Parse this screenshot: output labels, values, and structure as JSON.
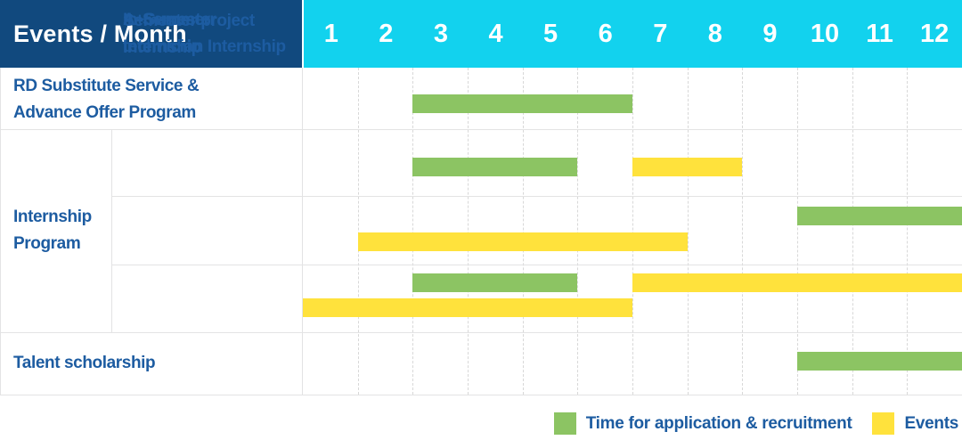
{
  "header": {
    "title": "Events / Month",
    "months": [
      "1",
      "2",
      "3",
      "4",
      "5",
      "6",
      "7",
      "8",
      "9",
      "10",
      "11",
      "12"
    ]
  },
  "colors": {
    "navy": "#11497E",
    "cyan": "#12D2EE",
    "green": "#8CC463",
    "yellow": "#FFE23C",
    "label_blue": "#1D5CA1",
    "grid_line": "#E3E3E4"
  },
  "row_labels": {
    "rd": {
      "line1": "RD Substitute Service &",
      "line2": "Advance Offer Program"
    },
    "internship_group": {
      "line1": "Internship",
      "line2": "Program"
    },
    "a_summer": {
      "line1": "A+Summer",
      "line2": "Internship"
    },
    "semester_project": {
      "line1": "Semester project",
      "line2": "Internship"
    },
    "in_semester": {
      "line1": "In-Semester",
      "line2": "technician Internship"
    },
    "talent": {
      "line1": "Talent scholarship"
    }
  },
  "legend": {
    "items": [
      {
        "label": "Time for application & recruitment",
        "color": "green"
      },
      {
        "label": "Events",
        "color": "yellow"
      }
    ]
  },
  "chart_data": {
    "type": "bar",
    "subtype": "gantt-schedule",
    "title": "Events / Month",
    "x_axis": {
      "label": "Month",
      "ticks": [
        1,
        2,
        3,
        4,
        5,
        6,
        7,
        8,
        9,
        10,
        11,
        12
      ],
      "range": [
        1,
        13
      ],
      "gridlines": "dashed-vertical"
    },
    "legend_position": "bottom-right",
    "series_legend": [
      {
        "name": "Time for application & recruitment",
        "color": "#8CC463"
      },
      {
        "name": "Events",
        "color": "#FFE23C"
      }
    ],
    "note": "start/end are month numbers on the 1-12 axis; end is exclusive (a bar from 3 to 7 covers months 3,4,5,6)",
    "rows": [
      {
        "group": "",
        "label": "RD Substitute Service & Advance Offer Program",
        "lanes": [
          [
            {
              "series": "Time for application & recruitment",
              "color": "green",
              "start": 3,
              "end": 7
            }
          ]
        ]
      },
      {
        "group": "Internship Program",
        "label": "A+Summer Internship",
        "lanes": [
          [
            {
              "series": "Time for application & recruitment",
              "color": "green",
              "start": 3,
              "end": 6
            },
            {
              "series": "Events",
              "color": "yellow",
              "start": 7,
              "end": 9
            }
          ]
        ]
      },
      {
        "group": "Internship Program",
        "label": "Semester project Internship",
        "lanes": [
          [
            {
              "series": "Time for application & recruitment",
              "color": "green",
              "start": 10,
              "end": 13
            }
          ],
          [
            {
              "series": "Events",
              "color": "yellow",
              "start": 2,
              "end": 8
            }
          ]
        ]
      },
      {
        "group": "Internship Program",
        "label": "In-Semester technician Internship",
        "lanes": [
          [
            {
              "series": "Time for application & recruitment",
              "color": "green",
              "start": 3,
              "end": 6
            },
            {
              "series": "Events",
              "color": "yellow",
              "start": 7,
              "end": 13
            }
          ],
          [
            {
              "series": "Events",
              "color": "yellow",
              "start": 1,
              "end": 7
            }
          ]
        ]
      },
      {
        "group": "",
        "label": "Talent scholarship",
        "lanes": [
          [
            {
              "series": "Time for application & recruitment",
              "color": "green",
              "start": 10,
              "end": 13
            }
          ]
        ]
      }
    ]
  }
}
